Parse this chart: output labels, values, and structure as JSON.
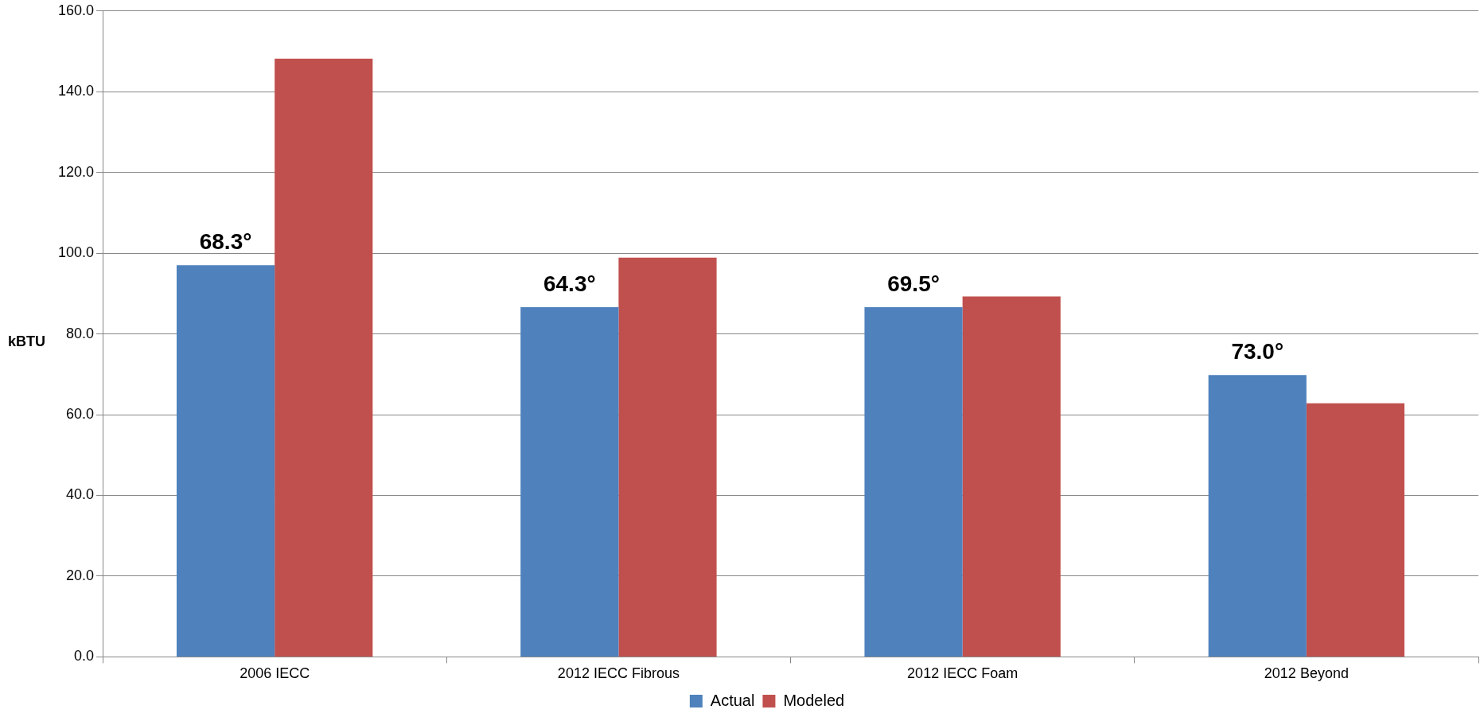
{
  "chart_data": {
    "type": "bar",
    "ylabel": "kBTU",
    "categories": [
      "2006 IECC",
      "2012 IECC Fibrous",
      "2012 IECC Foam",
      "2012 Beyond"
    ],
    "series": [
      {
        "name": "Actual",
        "color": "#4f81bd",
        "values": [
          97.0,
          86.6,
          86.6,
          69.8
        ]
      },
      {
        "name": "Modeled",
        "color": "#c0504d",
        "values": [
          148.2,
          98.9,
          89.3,
          62.8
        ]
      }
    ],
    "ylim": [
      0,
      160
    ],
    "yticks": [
      {
        "value": 0,
        "label": "0.0"
      },
      {
        "value": 20,
        "label": "20.0"
      },
      {
        "value": 40,
        "label": "40.0"
      },
      {
        "value": 60,
        "label": "60.0"
      },
      {
        "value": 80,
        "label": "80.0"
      },
      {
        "value": 100,
        "label": "100.0"
      },
      {
        "value": 120,
        "label": "120.0"
      },
      {
        "value": 140,
        "label": "140.0"
      },
      {
        "value": 160,
        "label": "160.0"
      }
    ],
    "grid": "y",
    "legend": "bottom",
    "annotations": [
      {
        "text": "68.3°",
        "x": "2006 IECC",
        "y": 97.0
      },
      {
        "text": "64.3°",
        "x": "2012 IECC Fibrous",
        "y": 86.6
      },
      {
        "text": "69.5°",
        "x": "2012 IECC Foam",
        "y": 86.6
      },
      {
        "text": "73.0°",
        "x": "2012 Beyond",
        "y": 69.8
      }
    ]
  }
}
